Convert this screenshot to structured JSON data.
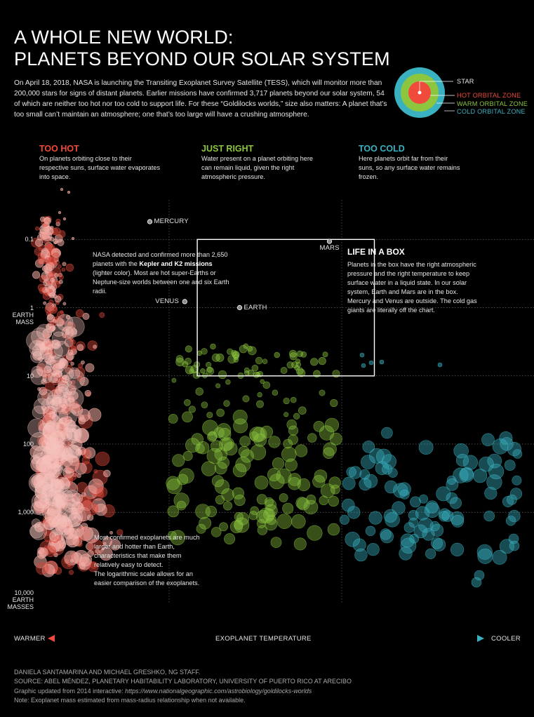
{
  "header": {
    "title_line1": "A WHOLE NEW WORLD:",
    "title_line2": "PLANETS BEYOND OUR SOLAR SYSTEM",
    "intro": "On April 18, 2018, NASA is launching the Transiting Exoplanet Survey Satellite (TESS), which will monitor more than 200,000 stars for signs of distant planets. Earlier missions have confirmed 3,717 planets beyond our solar system, 54 of which are neither too hot nor too cold to support life. For these “Goldilocks worlds,” size also matters: A planet that’s too small can’t maintain an atmosphere; one that’s too large will have a crushing atmosphere."
  },
  "legend": {
    "star": "STAR",
    "hot": "HOT ORBITAL ZONE",
    "warm": "WARM ORBITAL ZONE",
    "cold": "COLD ORBITAL ZONE",
    "colors": {
      "hot": "#ef4a3c",
      "warm": "#8cc63f",
      "cold": "#3ab1c0",
      "star": "#ffffff"
    }
  },
  "zones": {
    "hot": {
      "title": "TOO HOT",
      "desc": "On planets orbiting close to their respective suns, surface water evaporates into space."
    },
    "warm": {
      "title": "JUST RIGHT",
      "desc": "Water present on a planet orbiting here can remain liquid, given the right atmospheric pressure."
    },
    "cold": {
      "title": "TOO COLD",
      "desc": "Here planets orbit far from their suns, so any surface water remains frozen."
    }
  },
  "notes": {
    "kepler_pre": "NASA detected and confirmed more than 2,650 planets with the ",
    "kepler_bold": "Kepler and K2 missions",
    "kepler_post": " (lighter color). Most are hot super-Earths or Neptune-size worlds between one and six Earth radii.",
    "box_title": "LIFE IN A BOX",
    "box_desc": "Planets in the box have the right atmospheric pressure and the right temperature to keep surface water in a liquid state. In our solar system, Earth and Mars are in the box. Mercury and Venus are outside. The cold gas giants are literally off the chart.",
    "most_1": "Most confirmed exoplanets are much larger and hotter than Earth, characteristics that make them relatively easy to detect.",
    "most_2": "The logarithmic scale allows for an easier comparison of the exoplanets."
  },
  "axis": {
    "warmer": "WARMER",
    "center": "EXOPLANET TEMPERATURE",
    "cooler": "COOLER"
  },
  "chart_data": {
    "type": "scatter",
    "x_axis": "exoplanet temperature (warmer to cooler)",
    "y_scale": "log",
    "y_ticks": [
      {
        "value": 0.1,
        "label": "0.1"
      },
      {
        "value": 1,
        "label": "1",
        "sub": "EARTH MASS"
      },
      {
        "value": 10,
        "label": "10"
      },
      {
        "value": 100,
        "label": "100"
      },
      {
        "value": 1000,
        "label": "1,000"
      },
      {
        "value": 10000,
        "label": "10,000",
        "sub": "EARTH MASSES"
      }
    ],
    "ylim": [
      0.025,
      14000
    ],
    "series": [
      {
        "zone": "hot",
        "color": "#ef4a3c"
      },
      {
        "zone": "warm",
        "color": "#8cc63f"
      },
      {
        "zone": "cold",
        "color": "#3ab1c0"
      }
    ],
    "labeled_planets": [
      {
        "name": "MERCURY",
        "x": 0.23,
        "y": 0.055
      },
      {
        "name": "VENUS",
        "x": 0.3,
        "y": 0.815
      },
      {
        "name": "EARTH",
        "x": 0.41,
        "y": 1.0
      },
      {
        "name": "MARS",
        "x": 0.59,
        "y": 0.107
      }
    ],
    "box": {
      "x": [
        0.325,
        0.68
      ],
      "y": [
        0.1,
        10
      ]
    }
  },
  "credits": {
    "line1": "DANIELA SANTAMARINA AND MICHAEL GRESHKO, NG STAFF.",
    "line2": "SOURCE: ABEL MÉNDEZ, PLANETARY HABITABILITY LABORATORY, UNIVERSITY OF PUERTO RICO AT ARECIBO",
    "line3_pre": "Graphic updated from 2014 interactive: ",
    "line3_url": "https://www.nationalgeographic.com/astrobiology/goldilocks-worlds",
    "line4": "Note: Exoplanet mass estimated from mass-radius relationship when not available."
  }
}
